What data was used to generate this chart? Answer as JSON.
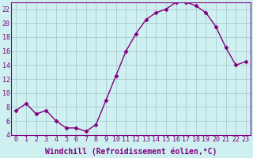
{
  "x": [
    0,
    1,
    2,
    3,
    4,
    5,
    6,
    7,
    8,
    9,
    10,
    11,
    12,
    13,
    14,
    15,
    16,
    17,
    18,
    19,
    20,
    21,
    22,
    23
  ],
  "y": [
    7.5,
    8.5,
    7.0,
    7.5,
    6.0,
    5.0,
    5.0,
    4.5,
    5.5,
    9.0,
    12.5,
    16.0,
    18.5,
    20.5,
    21.5,
    22.0,
    23.0,
    23.0,
    22.5,
    21.5,
    19.5,
    16.5,
    14.0,
    14.5
  ],
  "line_color": "#800080",
  "marker": "D",
  "marker_size": 2.5,
  "bg_color": "#cff0f0",
  "grid_color": "#aacccc",
  "xlabel": "Windchill (Refroidissement éolien,°C)",
  "xlabel_fontsize": 7,
  "tick_fontsize": 6,
  "ylim": [
    4,
    23
  ],
  "yticks": [
    4,
    6,
    8,
    10,
    12,
    14,
    16,
    18,
    20,
    22
  ],
  "xlim": [
    -0.5,
    23.5
  ],
  "xticks": [
    0,
    1,
    2,
    3,
    4,
    5,
    6,
    7,
    8,
    9,
    10,
    11,
    12,
    13,
    14,
    15,
    16,
    17,
    18,
    19,
    20,
    21,
    22,
    23
  ],
  "spine_color": "#800080"
}
